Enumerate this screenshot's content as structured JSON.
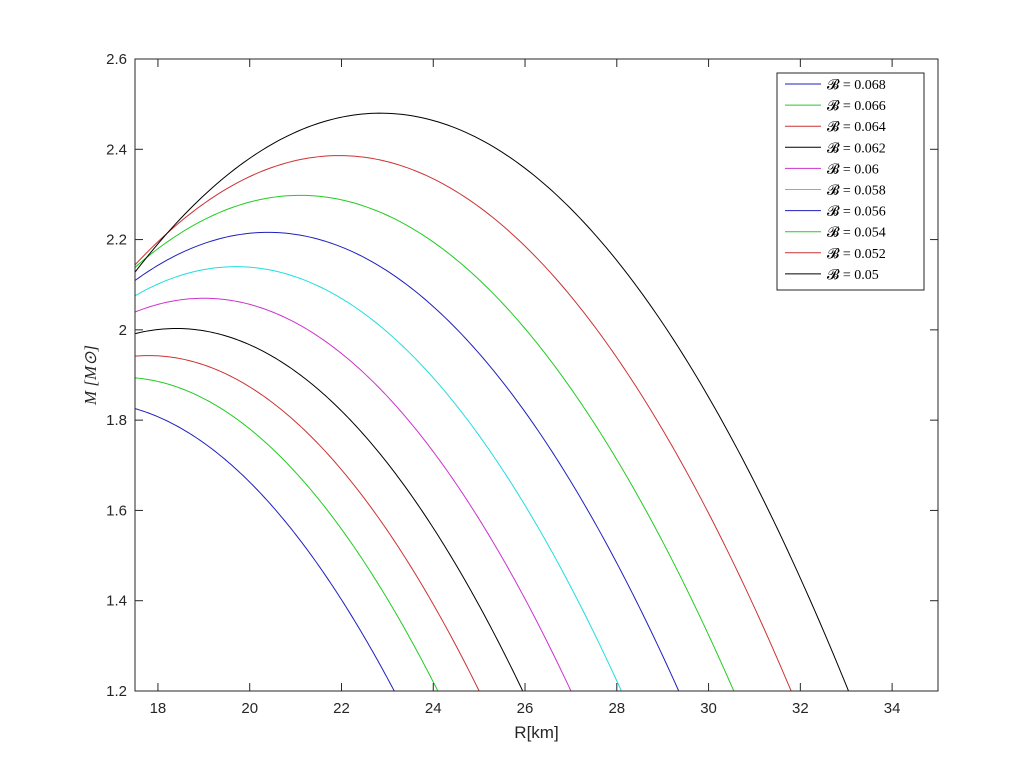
{
  "chart_data": {
    "type": "line",
    "title": "",
    "xlabel": "R[km]",
    "ylabel": "M [M⊙]",
    "xlim": [
      17.5,
      35
    ],
    "ylim": [
      1.2,
      2.6
    ],
    "xticks": [
      18,
      20,
      22,
      24,
      26,
      28,
      30,
      32,
      34
    ],
    "yticks": [
      1.2,
      1.4,
      1.6,
      1.8,
      2,
      2.2,
      2.4,
      2.6
    ],
    "xtick_labels": [
      "18",
      "20",
      "22",
      "24",
      "26",
      "28",
      "30",
      "32",
      "34"
    ],
    "ytick_labels": [
      "1.2",
      "1.4",
      "1.6",
      "1.8",
      "2",
      "2.2",
      "2.4",
      "2.6"
    ],
    "grid": false,
    "legend_position": "top-right",
    "series": [
      {
        "name": "𝓑 = 0.068",
        "color": "#1f1fbf",
        "peak_r": 16.5,
        "peak_m": 1.84,
        "end_r": 23.15
      },
      {
        "name": "𝓑 = 0.066",
        "color": "#22cc22",
        "peak_r": 17.2,
        "peak_m": 1.895,
        "end_r": 24.1
      },
      {
        "name": "𝓑 = 0.064",
        "color": "#cc3333",
        "peak_r": 17.8,
        "peak_m": 1.943,
        "end_r": 25.0
      },
      {
        "name": "𝓑 = 0.062",
        "color": "#000000",
        "peak_r": 18.4,
        "peak_m": 2.003,
        "end_r": 25.95
      },
      {
        "name": "𝓑 = 0.06",
        "color": "#cc33cc",
        "peak_r": 19.0,
        "peak_m": 2.07,
        "end_r": 27.0
      },
      {
        "name": "𝓑 = 0.058",
        "color": "#22dddd",
        "peak_r": 19.7,
        "peak_m": 2.14,
        "end_r": 28.1
      },
      {
        "name": "𝓑 = 0.056",
        "color": "#1f1fbf",
        "peak_r": 20.4,
        "peak_m": 2.216,
        "end_r": 29.35
      },
      {
        "name": "𝓑 = 0.054",
        "color": "#22cc22",
        "peak_r": 21.1,
        "peak_m": 2.298,
        "end_r": 30.55
      },
      {
        "name": "𝓑 = 0.052",
        "color": "#cc3333",
        "peak_r": 21.95,
        "peak_m": 2.386,
        "end_r": 31.8
      },
      {
        "name": "𝓑 = 0.05",
        "color": "#000000",
        "peak_r": 22.85,
        "peak_m": 2.48,
        "end_r": 33.05
      }
    ]
  }
}
